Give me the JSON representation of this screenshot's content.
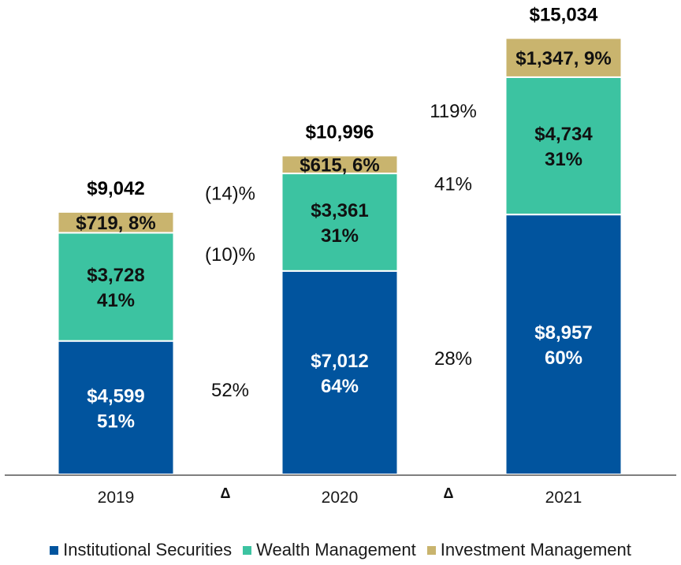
{
  "chart_data": {
    "type": "bar",
    "stacked": true,
    "categories": [
      "2019",
      "2020",
      "2021"
    ],
    "series": [
      {
        "key": "is",
        "name": "Institutional Securities",
        "color": "#01549E",
        "values": [
          4599,
          7012,
          8957
        ],
        "labels": [
          "$4,599\n51%",
          "$7,012\n64%",
          "$8,957\n60%"
        ]
      },
      {
        "key": "wm",
        "name": "Wealth Management",
        "color": "#3CC3A1",
        "values": [
          3728,
          3361,
          4734
        ],
        "labels": [
          "$3,728\n41%",
          "$3,361\n31%",
          "$4,734\n31%"
        ]
      },
      {
        "key": "im",
        "name": "Investment Management",
        "color": "#C9B46E",
        "values": [
          719,
          615,
          1347
        ],
        "labels": [
          "$719, 8%",
          "$615, 6%",
          "$1,347, 9%"
        ]
      }
    ],
    "totals": [
      "$9,042",
      "$10,996",
      "$15,034"
    ],
    "ylim": [
      0,
      16000
    ],
    "changes": [
      {
        "delta_symbol": "Δ",
        "is": "52%",
        "wm": "(10)%",
        "im": "(14)%"
      },
      {
        "delta_symbol": "Δ",
        "is": "28%",
        "wm": "41%",
        "im": "119%"
      }
    ],
    "legend_position": "bottom"
  }
}
